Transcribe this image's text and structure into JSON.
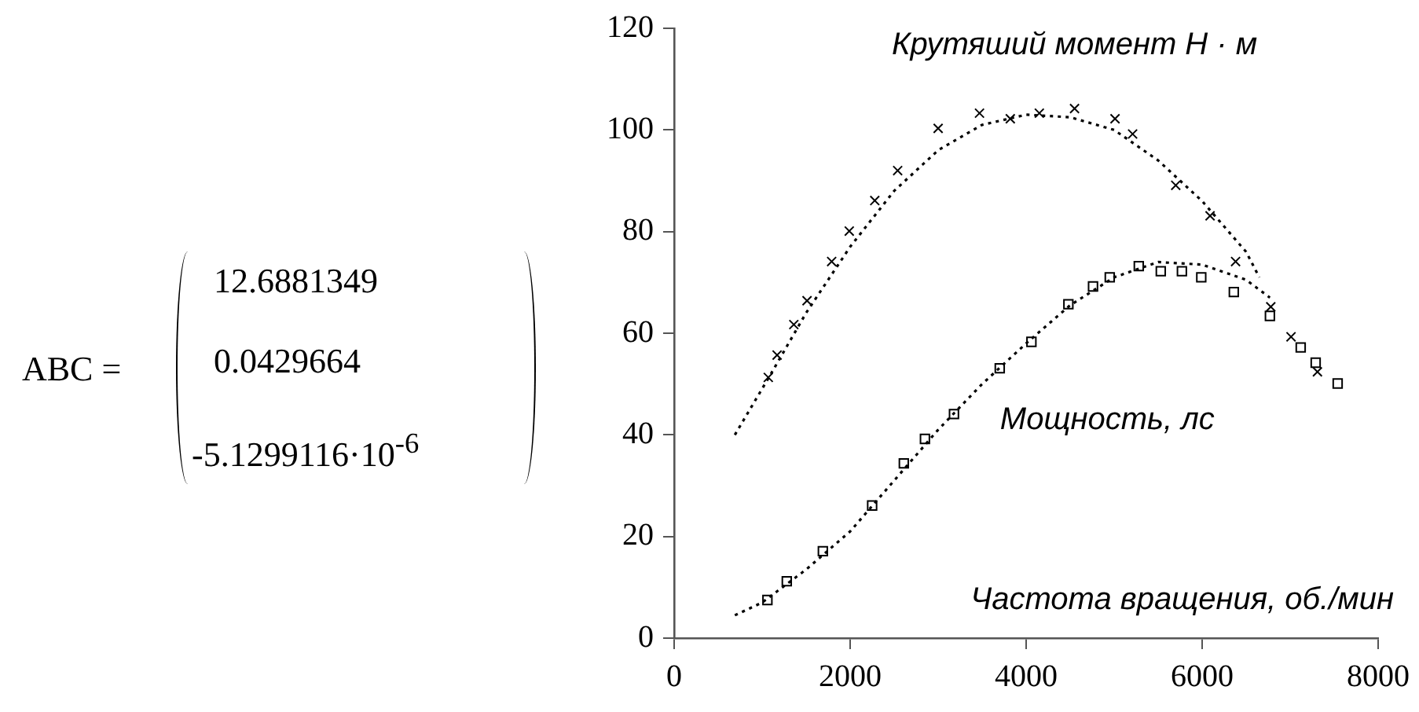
{
  "chart_data": {
    "type": "scatter",
    "xlabel": "Частота вращения, об./мин",
    "annotations": [
      "ABC =",
      "12.6881349",
      "0.0429664",
      "-5.1299116·10$^{-6}$"
    ],
    "xlim": [
      0,
      8000
    ],
    "xticks": [
      0,
      2000,
      4000,
      6000,
      8000
    ],
    "ylim": [
      0,
      120
    ],
    "yticks": [
      0,
      20,
      40,
      60,
      80,
      100,
      120
    ],
    "legend": false,
    "series": [
      {
        "name": "Крутяший момент Н · м",
        "marker": "cross",
        "color": "#000000",
        "x": [
          1070,
          1170,
          1360,
          1510,
          1790,
          1990,
          2280,
          2540,
          3000,
          3470,
          3820,
          4150,
          4550,
          5010,
          5210,
          5700,
          6090,
          6380,
          6780,
          7010,
          7310
        ],
        "values": [
          51.3,
          55.7,
          61.7,
          66.4,
          74.1,
          80.1,
          86.1,
          92,
          100.3,
          103.3,
          102.2,
          103.3,
          104.2,
          102.2,
          99.2,
          89.1,
          83.1,
          74.1,
          65.2,
          59.3,
          52.4
        ]
      },
      {
        "name": "Мощность, лс",
        "marker": "square",
        "color": "#000000",
        "x": [
          1060,
          1280,
          1690,
          2250,
          2610,
          2850,
          3180,
          3700,
          4060,
          4480,
          4760,
          4950,
          5280,
          5530,
          5770,
          5990,
          6360,
          6770,
          7120,
          7290,
          7540
        ],
        "values": [
          7.5,
          11.2,
          17.1,
          26.1,
          34.4,
          39.2,
          44.1,
          53.1,
          58.3,
          65.7,
          69.2,
          71,
          73.2,
          72.2,
          72.2,
          71,
          68.1,
          63.4,
          57.2,
          54.2,
          50.1
        ]
      },
      {
        "type": "line",
        "marker": "none",
        "line_style": "dotted",
        "color": "#000000",
        "x": [
          690,
          1100,
          1500,
          2000,
          2500,
          3000,
          3500,
          4000,
          4500,
          5000,
          5500,
          6000,
          6500,
          6650
        ],
        "values": [
          40,
          52,
          64,
          77,
          88,
          96,
          101,
          103,
          102.5,
          100,
          94,
          86,
          76,
          71
        ]
      },
      {
        "type": "line",
        "marker": "none",
        "line_style": "dotted",
        "color": "#000000",
        "x": [
          690,
          1000,
          1500,
          2000,
          2500,
          3000,
          3500,
          4000,
          4500,
          5000,
          5500,
          6000,
          6500,
          6770
        ],
        "values": [
          4.5,
          7,
          13.5,
          21,
          31,
          41,
          50,
          58,
          65.5,
          71,
          74,
          73.5,
          70.5,
          67
        ]
      }
    ]
  }
}
